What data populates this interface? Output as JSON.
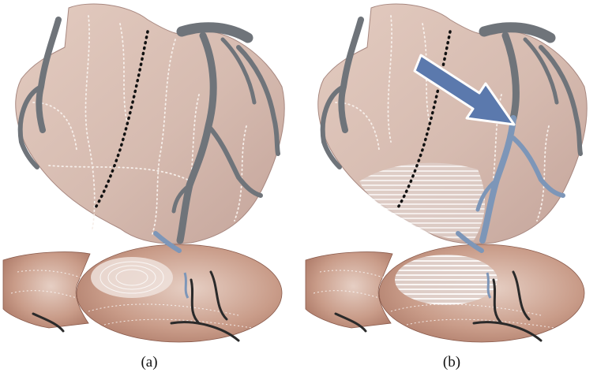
{
  "figure": {
    "panels": [
      {
        "id": "a",
        "caption": "(a)",
        "shows_arrow": false,
        "shows_stripe_region": false
      },
      {
        "id": "b",
        "caption": "(b)",
        "shows_arrow": true,
        "shows_stripe_region": true
      }
    ],
    "colors": {
      "heart_surface": "#d9bfb3",
      "heart_shadow": "#b99b91",
      "flat_map": "#c79a87",
      "flat_map_dark": "#a86e5c",
      "vessel_gray": "#6f747a",
      "vessel_blue": "#7d96b8",
      "arrow_blue": "#5b79ad",
      "contour_white": "#f5ede8",
      "dotted_black": "#111111"
    }
  }
}
